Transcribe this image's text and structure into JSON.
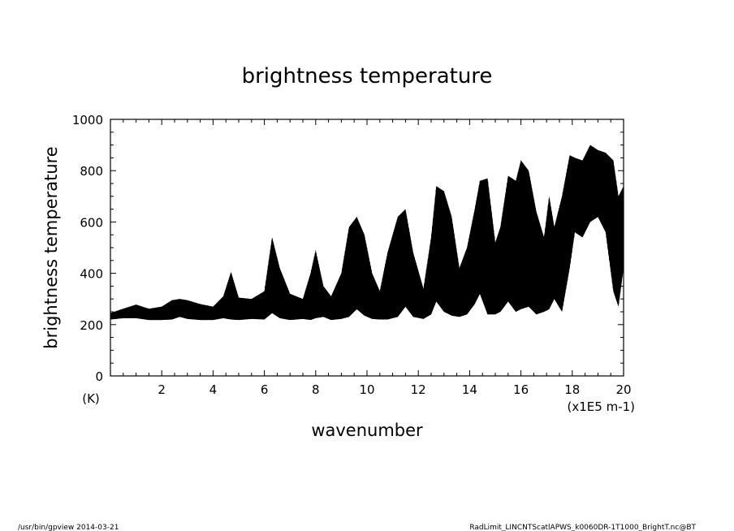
{
  "chart_data": {
    "type": "line",
    "title": "brightness temperature",
    "xlabel": "wavenumber",
    "ylabel": "brightness temperature",
    "y_unit": "(K)",
    "x_unit": "(x1E5 m-1)",
    "xlim": [
      0,
      20
    ],
    "ylim": [
      0,
      1000
    ],
    "x_ticks": [
      "2",
      "4",
      "6",
      "8",
      "10",
      "12",
      "14",
      "16",
      "18",
      "20"
    ],
    "y_ticks": [
      "0",
      "200",
      "400",
      "600",
      "800",
      "1000"
    ],
    "grid": false,
    "legend": "none",
    "series": [
      {
        "envelope": {
          "x": [
            0.0,
            0.5,
            1.0,
            1.5,
            2.0,
            2.4,
            2.7,
            3.0,
            3.5,
            4.0,
            4.4,
            4.7,
            5.0,
            5.5,
            6.0,
            6.3,
            6.6,
            7.0,
            7.5,
            7.8,
            8.0,
            8.3,
            8.6,
            9.0,
            9.3,
            9.6,
            9.9,
            10.2,
            10.5,
            10.8,
            11.2,
            11.5,
            11.8,
            12.2,
            12.5,
            12.7,
            13.0,
            13.3,
            13.6,
            13.9,
            14.2,
            14.4,
            14.7,
            15.0,
            15.2,
            15.5,
            15.8,
            16.0,
            16.3,
            16.6,
            16.9,
            17.1,
            17.3,
            17.6,
            17.9,
            18.1,
            18.4,
            18.7,
            19.0,
            19.3,
            19.6,
            19.8,
            20.0
          ],
          "upper": [
            245,
            262,
            278,
            262,
            270,
            295,
            300,
            295,
            280,
            270,
            310,
            405,
            305,
            300,
            330,
            540,
            420,
            320,
            300,
            400,
            490,
            350,
            310,
            400,
            580,
            620,
            550,
            400,
            330,
            480,
            620,
            650,
            480,
            340,
            540,
            740,
            720,
            620,
            420,
            500,
            650,
            760,
            770,
            520,
            580,
            780,
            760,
            840,
            800,
            640,
            540,
            700,
            580,
            700,
            860,
            850,
            840,
            900,
            880,
            870,
            840,
            700,
            740
          ],
          "lower": [
            220,
            225,
            225,
            218,
            218,
            220,
            230,
            222,
            218,
            218,
            225,
            220,
            218,
            222,
            220,
            245,
            225,
            218,
            222,
            218,
            225,
            230,
            218,
            222,
            230,
            260,
            235,
            222,
            220,
            220,
            230,
            270,
            230,
            222,
            240,
            290,
            250,
            235,
            230,
            240,
            280,
            320,
            240,
            240,
            250,
            290,
            250,
            260,
            270,
            240,
            250,
            260,
            300,
            250,
            420,
            560,
            540,
            600,
            620,
            560,
            330,
            270,
            420
          ]
        }
      }
    ]
  },
  "footer": {
    "left": "/usr/bin/gpview  2014-03-21",
    "right": "RadLimit_LINCNTScatlAPWS_k0060DR-1T1000_BrightT.nc@BT"
  }
}
